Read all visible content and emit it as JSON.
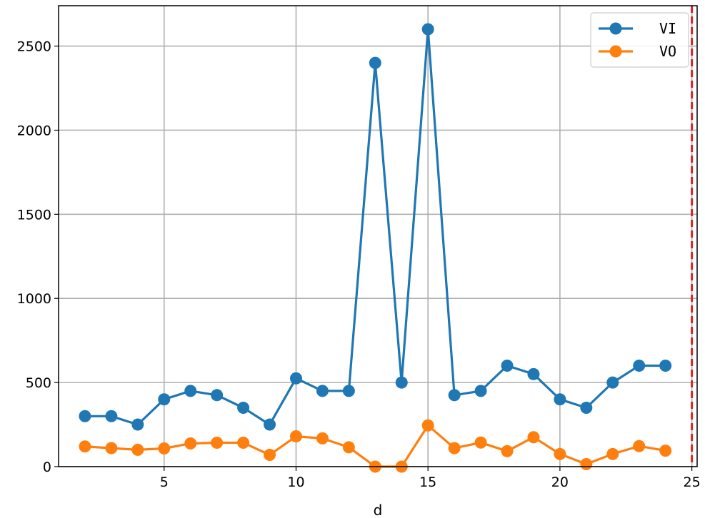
{
  "chart_data": {
    "type": "line",
    "xlabel": "d",
    "ylabel": "",
    "title": "",
    "xlim": [
      1,
      25.2
    ],
    "ylim": [
      0,
      2740
    ],
    "xticks": [
      5,
      10,
      15,
      20,
      25
    ],
    "yticks": [
      0,
      500,
      1000,
      1500,
      2000,
      2500
    ],
    "grid": true,
    "legend_position": "top-right",
    "x": [
      2,
      3,
      4,
      5,
      6,
      7,
      8,
      9,
      10,
      11,
      12,
      13,
      14,
      15,
      16,
      17,
      18,
      19,
      20,
      21,
      22,
      23,
      24
    ],
    "series": [
      {
        "name": "VI",
        "color": "#1f77b4",
        "values": [
          300,
          300,
          250,
          400,
          450,
          425,
          350,
          250,
          525,
          450,
          450,
          2400,
          500,
          2600,
          425,
          450,
          600,
          550,
          400,
          350,
          500,
          600,
          600
        ]
      },
      {
        "name": "VO",
        "color": "#ff7f0e",
        "values": [
          120,
          110,
          100,
          108,
          138,
          142,
          142,
          70,
          180,
          168,
          115,
          0,
          0,
          245,
          110,
          143,
          92,
          175,
          75,
          15,
          75,
          122,
          95
        ]
      }
    ],
    "reference_lines": [
      {
        "axis": "x",
        "value": 25,
        "color": "#d62728",
        "style": "dashed"
      }
    ]
  }
}
